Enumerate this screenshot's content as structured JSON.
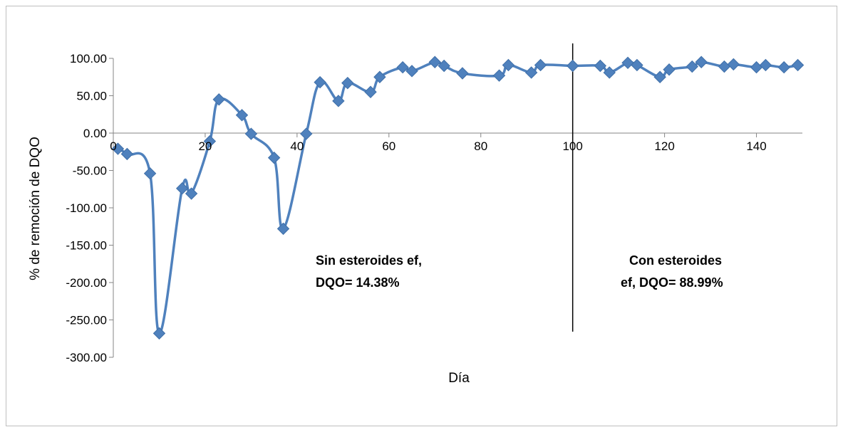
{
  "chart_data": {
    "type": "scatter",
    "title": "",
    "xlabel": "Día",
    "ylabel": "% de remoción de DQO",
    "xlim": [
      0,
      150
    ],
    "ylim": [
      -300,
      100
    ],
    "x_ticks": [
      0,
      20,
      40,
      60,
      80,
      100,
      120,
      140
    ],
    "x_tick_labels": [
      "0",
      "20",
      "40",
      "60",
      "80",
      "100",
      "120",
      "140"
    ],
    "y_ticks": [
      100,
      50,
      0,
      -50,
      -100,
      -150,
      -200,
      -250,
      -300
    ],
    "y_tick_labels": [
      "100.00",
      "50.00",
      "0.00",
      "-50.00",
      "-100.00",
      "-150.00",
      "-200.00",
      "-250.00",
      "-300.00"
    ],
    "grid": false,
    "legend": "none",
    "line_style": "smoothed line with diamond markers",
    "divider_x": 100,
    "series": [
      {
        "color": "#4f81bd",
        "points": [
          [
            1,
            -21
          ],
          [
            3,
            -28
          ],
          [
            8,
            -54
          ],
          [
            10,
            -268
          ],
          [
            15,
            -74
          ],
          [
            17,
            -81
          ],
          [
            21,
            -11
          ],
          [
            23,
            45
          ],
          [
            28,
            24
          ],
          [
            30,
            -1
          ],
          [
            35,
            -33
          ],
          [
            37,
            -128
          ],
          [
            42,
            -1
          ],
          [
            45,
            68
          ],
          [
            49,
            43
          ],
          [
            51,
            67
          ],
          [
            56,
            55
          ],
          [
            58,
            75
          ],
          [
            63,
            88
          ],
          [
            65,
            83
          ],
          [
            70,
            95
          ],
          [
            72,
            90
          ],
          [
            76,
            80
          ],
          [
            84,
            77
          ],
          [
            86,
            91
          ],
          [
            91,
            81
          ],
          [
            93,
            91
          ],
          [
            100,
            90
          ],
          [
            106,
            90
          ],
          [
            108,
            81
          ],
          [
            112,
            94
          ],
          [
            114,
            91
          ],
          [
            119,
            75
          ],
          [
            121,
            85
          ],
          [
            126,
            89
          ],
          [
            128,
            95
          ],
          [
            133,
            89
          ],
          [
            135,
            92
          ],
          [
            140,
            88
          ],
          [
            142,
            91
          ],
          [
            146,
            88
          ],
          [
            149,
            91
          ]
        ]
      }
    ],
    "annotations": [
      {
        "lines": [
          "Sin esteroides ef,",
          "DQO= 14.38%"
        ]
      },
      {
        "lines": [
          "Con esteroides",
          "ef, DQO= 88.99%"
        ]
      }
    ]
  }
}
